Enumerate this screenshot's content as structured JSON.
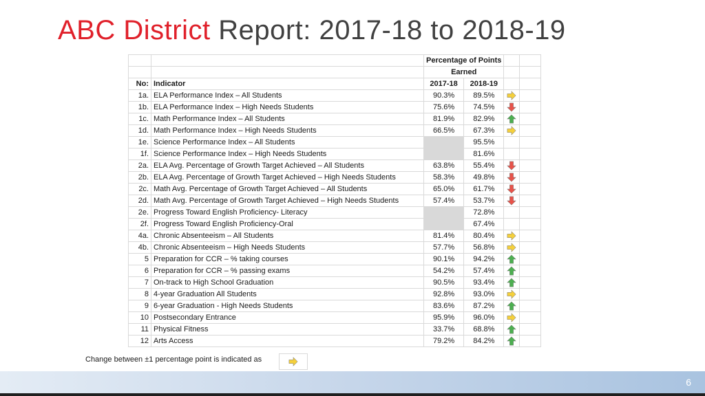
{
  "title": {
    "accent": "ABC District",
    "rest": " Report: 2017-18 to 2018-19"
  },
  "table": {
    "group_header_line1": "Percentage of Points",
    "group_header_line2": "Earned",
    "col_no": "No:",
    "col_indicator": "Indicator",
    "col_y1": "2017-18",
    "col_y2": "2018-19",
    "rows": [
      {
        "no": "1a.",
        "indicator": "ELA Performance Index – All Students",
        "y1": "90.3%",
        "y2": "89.5%",
        "arrow": "right"
      },
      {
        "no": "1b.",
        "indicator": "ELA Performance Index – High Needs Students",
        "y1": "75.6%",
        "y2": "74.5%",
        "arrow": "down"
      },
      {
        "no": "1c.",
        "indicator": "Math Performance Index – All Students",
        "y1": "81.9%",
        "y2": "82.9%",
        "arrow": "up"
      },
      {
        "no": "1d.",
        "indicator": "Math Performance Index – High Needs Students",
        "y1": "66.5%",
        "y2": "67.3%",
        "arrow": "right"
      },
      {
        "no": "1e.",
        "indicator": "Science Performance Index – All Students",
        "y1": "",
        "y2": "95.5%",
        "arrow": ""
      },
      {
        "no": "1f.",
        "indicator": "Science Performance Index – High Needs Students",
        "y1": "",
        "y2": "81.6%",
        "arrow": ""
      },
      {
        "no": "2a.",
        "indicator": "ELA Avg. Percentage of Growth Target Achieved – All Students",
        "y1": "63.8%",
        "y2": "55.4%",
        "arrow": "down"
      },
      {
        "no": "2b.",
        "indicator": "ELA Avg. Percentage of Growth Target Achieved – High Needs Students",
        "y1": "58.3%",
        "y2": "49.8%",
        "arrow": "down"
      },
      {
        "no": "2c.",
        "indicator": "Math Avg. Percentage of Growth Target Achieved – All Students",
        "y1": "65.0%",
        "y2": "61.7%",
        "arrow": "down"
      },
      {
        "no": "2d.",
        "indicator": "Math Avg. Percentage of Growth Target Achieved – High Needs Students",
        "y1": "57.4%",
        "y2": "53.7%",
        "arrow": "down"
      },
      {
        "no": "2e.",
        "indicator": "Progress Toward English Proficiency- Literacy",
        "y1": "",
        "y2": "72.8%",
        "arrow": ""
      },
      {
        "no": "2f.",
        "indicator": "Progress Toward English Proficiency-Oral",
        "y1": "",
        "y2": "67.4%",
        "arrow": ""
      },
      {
        "no": "4a.",
        "indicator": "Chronic Absenteeism – All Students",
        "y1": "81.4%",
        "y2": "80.4%",
        "arrow": "right"
      },
      {
        "no": "4b.",
        "indicator": "Chronic Absenteeism – High Needs Students",
        "y1": "57.7%",
        "y2": "56.8%",
        "arrow": "right"
      },
      {
        "no": "5",
        "indicator": "Preparation for CCR – % taking courses",
        "y1": "90.1%",
        "y2": "94.2%",
        "arrow": "up"
      },
      {
        "no": "6",
        "indicator": "Preparation for CCR – % passing exams",
        "y1": "54.2%",
        "y2": "57.4%",
        "arrow": "up"
      },
      {
        "no": "7",
        "indicator": "On-track to High School Graduation",
        "y1": "90.5%",
        "y2": "93.4%",
        "arrow": "up"
      },
      {
        "no": "8",
        "indicator": "4-year Graduation All Students",
        "y1": "92.8%",
        "y2": "93.0%",
        "arrow": "right"
      },
      {
        "no": "9",
        "indicator": "6-year Graduation - High Needs Students",
        "y1": "83.6%",
        "y2": "87.2%",
        "arrow": "up"
      },
      {
        "no": "10",
        "indicator": "Postsecondary Entrance",
        "y1": "95.9%",
        "y2": "96.0%",
        "arrow": "right"
      },
      {
        "no": "11",
        "indicator": "Physical Fitness",
        "y1": "33.7%",
        "y2": "68.8%",
        "arrow": "up"
      },
      {
        "no": "12",
        "indicator": "Arts Access",
        "y1": "79.2%",
        "y2": "84.2%",
        "arrow": "up"
      }
    ]
  },
  "legend": {
    "text": "Change between ±1 percentage point is indicated as",
    "arrow": "right"
  },
  "arrow_colors": {
    "up": "#4caf50",
    "down": "#e8534a",
    "right": "#f5d03b"
  },
  "page_number": "6"
}
